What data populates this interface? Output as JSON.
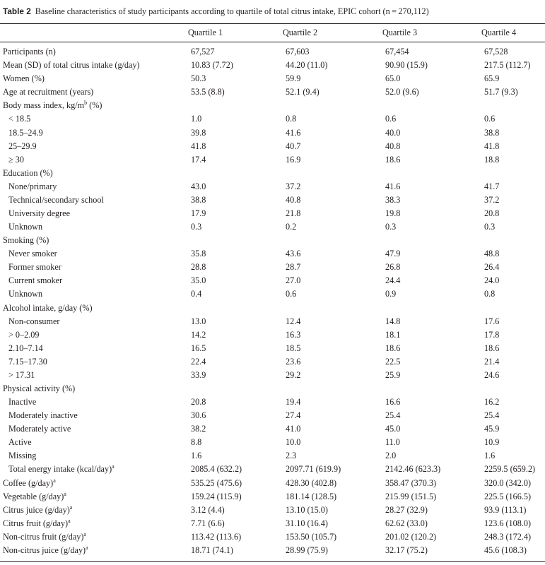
{
  "caption": {
    "label": "Table 2",
    "text": "Baseline characteristics of study participants according to quartile of total citrus intake, EPIC cohort (n = 270,112)"
  },
  "columns": [
    "Quartile 1",
    "Quartile 2",
    "Quartile 3",
    "Quartile 4"
  ],
  "rows": [
    {
      "label": "Participants (n)",
      "values": [
        "67,527",
        "67,603",
        "67,454",
        "67,528"
      ]
    },
    {
      "label": "Mean (SD) of total citrus intake (g/day)",
      "values": [
        "10.83 (7.72)",
        "44.20 (11.0)",
        "90.90 (15.9)",
        "217.5 (112.7)"
      ]
    },
    {
      "label": "Women (%)",
      "values": [
        "50.3",
        "59.9",
        "65.0",
        "65.9"
      ]
    },
    {
      "label": "Age at recruitment (years)",
      "values": [
        "53.5 (8.8)",
        "52.1 (9.4)",
        "52.0 (9.6)",
        "51.7 (9.3)"
      ]
    },
    {
      "label": "Body mass index, kg/m",
      "sup": "b",
      "suffix": " (%)",
      "values": [
        "",
        "",
        "",
        ""
      ]
    },
    {
      "label": "< 18.5",
      "indent": true,
      "values": [
        "1.0",
        "0.8",
        "0.6",
        "0.6"
      ]
    },
    {
      "label": "18.5–24.9",
      "indent": true,
      "values": [
        "39.8",
        "41.6",
        "40.0",
        "38.8"
      ]
    },
    {
      "label": "25–29.9",
      "indent": true,
      "values": [
        "41.8",
        "40.7",
        "40.8",
        "41.8"
      ]
    },
    {
      "label": "≥ 30",
      "indent": true,
      "values": [
        "17.4",
        "16.9",
        "18.6",
        "18.8"
      ]
    },
    {
      "label": "Education (%)",
      "values": [
        "",
        "",
        "",
        ""
      ]
    },
    {
      "label": "None/primary",
      "indent": true,
      "values": [
        "43.0",
        "37.2",
        "41.6",
        "41.7"
      ]
    },
    {
      "label": "Technical/secondary school",
      "indent": true,
      "values": [
        "38.8",
        "40.8",
        "38.3",
        "37.2"
      ]
    },
    {
      "label": "University degree",
      "indent": true,
      "values": [
        "17.9",
        "21.8",
        "19.8",
        "20.8"
      ]
    },
    {
      "label": "Unknown",
      "indent": true,
      "values": [
        "0.3",
        "0.2",
        "0.3",
        "0.3"
      ]
    },
    {
      "label": "Smoking (%)",
      "values": [
        "",
        "",
        "",
        ""
      ]
    },
    {
      "label": "Never smoker",
      "indent": true,
      "values": [
        "35.8",
        "43.6",
        "47.9",
        "48.8"
      ]
    },
    {
      "label": "Former smoker",
      "indent": true,
      "values": [
        "28.8",
        "28.7",
        "26.8",
        "26.4"
      ]
    },
    {
      "label": "Current smoker",
      "indent": true,
      "values": [
        "35.0",
        "27.0",
        "24.4",
        "24.0"
      ]
    },
    {
      "label": "Unknown",
      "indent": true,
      "values": [
        "0.4",
        "0.6",
        "0.9",
        "0.8"
      ]
    },
    {
      "label": "Alcohol intake, g/day (%)",
      "values": [
        "",
        "",
        "",
        ""
      ]
    },
    {
      "label": "Non-consumer",
      "indent": true,
      "values": [
        "13.0",
        "12.4",
        "14.8",
        "17.6"
      ]
    },
    {
      "label": "> 0–2.09",
      "indent": true,
      "values": [
        "14.2",
        "16.3",
        "18.1",
        "17.8"
      ]
    },
    {
      "label": "2.10–7.14",
      "indent": true,
      "values": [
        "16.5",
        "18.5",
        "18.6",
        "18.6"
      ]
    },
    {
      "label": "7.15–17.30",
      "indent": true,
      "values": [
        "22.4",
        "23.6",
        "22.5",
        "21.4"
      ]
    },
    {
      "label": "> 17.31",
      "indent": true,
      "values": [
        "33.9",
        "29.2",
        "25.9",
        "24.6"
      ]
    },
    {
      "label": "Physical activity (%)",
      "values": [
        "",
        "",
        "",
        ""
      ]
    },
    {
      "label": "Inactive",
      "indent": true,
      "values": [
        "20.8",
        "19.4",
        "16.6",
        "16.2"
      ]
    },
    {
      "label": "Moderately inactive",
      "indent": true,
      "values": [
        "30.6",
        "27.4",
        "25.4",
        "25.4"
      ]
    },
    {
      "label": "Moderately active",
      "indent": true,
      "values": [
        "38.2",
        "41.0",
        "45.0",
        "45.9"
      ]
    },
    {
      "label": "Active",
      "indent": true,
      "values": [
        "8.8",
        "10.0",
        "11.0",
        "10.9"
      ]
    },
    {
      "label": "Missing",
      "indent": true,
      "values": [
        "1.6",
        "2.3",
        "2.0",
        "1.6"
      ]
    },
    {
      "label": "Total energy intake (kcal/day)",
      "sup": "a",
      "indent": true,
      "values": [
        "2085.4 (632.2)",
        "2097.71 (619.9)",
        "2142.46 (623.3)",
        "2259.5 (659.2)"
      ]
    },
    {
      "label": "Coffee (g/day)",
      "sup": "a",
      "values": [
        "535.25 (475.6)",
        "428.30 (402.8)",
        "358.47 (370.3)",
        "320.0 (342.0)"
      ]
    },
    {
      "label": "Vegetable (g/day)",
      "sup": "a",
      "values": [
        "159.24 (115.9)",
        "181.14 (128.5)",
        "215.99 (151.5)",
        "225.5 (166.5)"
      ]
    },
    {
      "label": "Citrus juice (g/day)",
      "sup": "a",
      "values": [
        "3.12 (4.4)",
        "13.10 (15.0)",
        "28.27 (32.9)",
        "93.9 (113.1)"
      ]
    },
    {
      "label": "Citrus fruit (g/day)",
      "sup": "a",
      "values": [
        "7.71 (6.6)",
        "31.10 (16.4)",
        "62.62 (33.0)",
        "123.6 (108.0)"
      ]
    },
    {
      "label": "Non-citrus fruit (g/day)",
      "sup": "a",
      "values": [
        "113.42 (113.6)",
        "153.50 (105.7)",
        "201.02 (120.2)",
        "248.3 (172.4)"
      ]
    },
    {
      "label": "Non-citrus juice (g/day)",
      "sup": "a",
      "values": [
        "18.71 (74.1)",
        "28.99 (75.9)",
        "32.17 (75.2)",
        "45.6 (108.3)"
      ]
    }
  ]
}
